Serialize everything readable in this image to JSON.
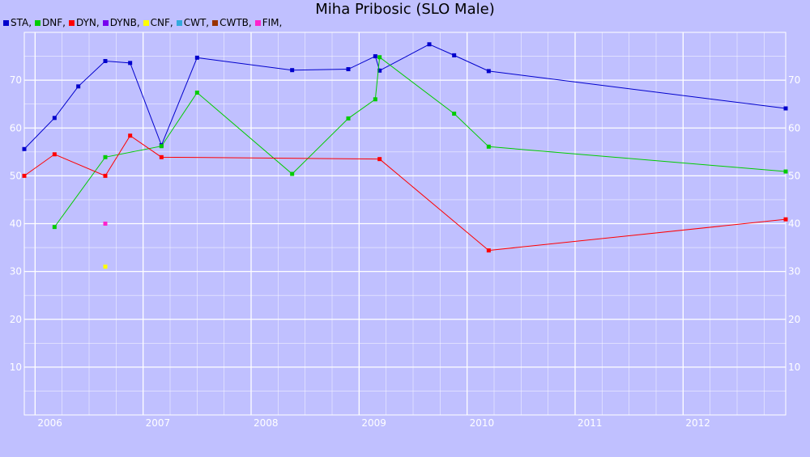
{
  "chart_data": {
    "type": "line",
    "title": "Miha Pribosic (SLO Male)",
    "xlabel": "",
    "ylabel": "",
    "xlim": [
      2005.9,
      2012.95
    ],
    "ylim": [
      0,
      80
    ],
    "x_ticks": [
      2006,
      2007,
      2008,
      2009,
      2010,
      2011,
      2012
    ],
    "y_ticks": [
      10,
      20,
      30,
      40,
      50,
      60,
      70
    ],
    "grid": true,
    "legend_position": "top-left",
    "series": [
      {
        "name": "STA",
        "color": "#0000cc",
        "points": [
          [
            2005.9,
            55.6
          ],
          [
            2006.18,
            62.1
          ],
          [
            2006.4,
            68.7
          ],
          [
            2006.65,
            74.0
          ],
          [
            2006.88,
            73.6
          ],
          [
            2007.17,
            56.4
          ],
          [
            2007.5,
            74.7
          ],
          [
            2008.38,
            72.1
          ],
          [
            2008.9,
            72.3
          ],
          [
            2009.15,
            75.0
          ],
          [
            2009.19,
            72.0
          ],
          [
            2009.65,
            77.5
          ],
          [
            2009.88,
            75.2
          ],
          [
            2010.2,
            71.9
          ],
          [
            2012.95,
            64.1
          ]
        ]
      },
      {
        "name": "DNF",
        "color": "#00cc00",
        "points": [
          [
            2006.18,
            39.3
          ],
          [
            2006.65,
            53.9
          ],
          [
            2007.17,
            56.2
          ],
          [
            2007.5,
            67.4
          ],
          [
            2008.38,
            50.4
          ],
          [
            2008.9,
            62.0
          ],
          [
            2009.15,
            66.0
          ],
          [
            2009.19,
            74.8
          ],
          [
            2009.88,
            63.0
          ],
          [
            2010.2,
            56.1
          ],
          [
            2012.95,
            50.9
          ]
        ]
      },
      {
        "name": "DYN",
        "color": "#ff0000",
        "points": [
          [
            2005.9,
            50.0
          ],
          [
            2006.18,
            54.5
          ],
          [
            2006.65,
            50.0
          ],
          [
            2006.88,
            58.4
          ],
          [
            2007.17,
            53.9
          ],
          [
            2009.19,
            53.5
          ],
          [
            2010.2,
            34.4
          ],
          [
            2012.95,
            40.9
          ]
        ]
      },
      {
        "name": "DYNB",
        "color": "#7700ee",
        "points": []
      },
      {
        "name": "CNF",
        "color": "#ffff00",
        "points": [
          [
            2006.65,
            31.0
          ]
        ]
      },
      {
        "name": "CWT",
        "color": "#33aadd",
        "points": []
      },
      {
        "name": "CWTB",
        "color": "#993300",
        "points": []
      },
      {
        "name": "FIM",
        "color": "#ff22cc",
        "points": [
          [
            2006.65,
            40.0
          ]
        ]
      }
    ]
  }
}
